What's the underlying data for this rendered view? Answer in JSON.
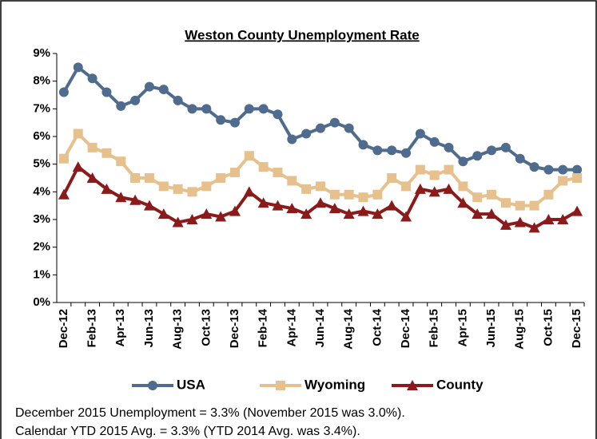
{
  "chart_data": {
    "type": "line",
    "title": "Weston County Unemployment Rate",
    "categories": [
      "Dec-12",
      null,
      "Feb-13",
      null,
      "Apr-13",
      null,
      "Jun-13",
      null,
      "Aug-13",
      null,
      "Oct-13",
      null,
      "Dec-13",
      null,
      "Feb-14",
      null,
      "Apr-14",
      null,
      "Jun-14",
      null,
      "Aug-14",
      null,
      "Oct-14",
      null,
      "Dec-14",
      null,
      "Feb-15",
      null,
      "Apr-15",
      null,
      "Jun-15",
      null,
      "Aug-15",
      null,
      "Oct-15",
      null,
      "Dec-15"
    ],
    "series": [
      {
        "name": "USA",
        "color": "#4f6b8d",
        "marker": "circle",
        "values": [
          7.6,
          8.5,
          8.1,
          7.6,
          7.1,
          7.3,
          7.8,
          7.7,
          7.3,
          7.0,
          7.0,
          6.6,
          6.5,
          7.0,
          7.0,
          6.8,
          5.9,
          6.1,
          6.3,
          6.5,
          6.3,
          5.7,
          5.5,
          5.5,
          5.4,
          6.1,
          5.8,
          5.6,
          5.1,
          5.3,
          5.5,
          5.6,
          5.2,
          4.9,
          4.8,
          4.8,
          4.8
        ]
      },
      {
        "name": "Wyoming",
        "color": "#e6c18d",
        "marker": "square",
        "values": [
          5.2,
          6.1,
          5.6,
          5.4,
          5.1,
          4.5,
          4.5,
          4.2,
          4.1,
          4.0,
          4.2,
          4.5,
          4.7,
          5.3,
          4.9,
          4.7,
          4.4,
          4.1,
          4.2,
          3.9,
          3.9,
          3.8,
          3.9,
          4.5,
          4.2,
          4.8,
          4.6,
          4.8,
          4.2,
          3.8,
          3.9,
          3.6,
          3.5,
          3.5,
          3.9,
          4.4,
          4.5
        ]
      },
      {
        "name": "County",
        "color": "#8b1a1a",
        "marker": "triangle",
        "values": [
          3.9,
          4.9,
          4.5,
          4.1,
          3.8,
          3.7,
          3.5,
          3.2,
          2.9,
          3.0,
          3.2,
          3.1,
          3.3,
          4.0,
          3.6,
          3.5,
          3.4,
          3.2,
          3.6,
          3.4,
          3.2,
          3.3,
          3.2,
          3.5,
          3.1,
          4.1,
          4.0,
          4.1,
          3.6,
          3.2,
          3.2,
          2.8,
          2.9,
          2.7,
          3.0,
          3.0,
          3.3
        ]
      }
    ],
    "ylim": [
      0,
      9
    ],
    "yticks": [
      {
        "value": 0,
        "label": "0%"
      },
      {
        "value": 1,
        "label": "1%"
      },
      {
        "value": 2,
        "label": "2%"
      },
      {
        "value": 3,
        "label": "3%"
      },
      {
        "value": 4,
        "label": "4%"
      },
      {
        "value": 5,
        "label": "5%"
      },
      {
        "value": 6,
        "label": "6%"
      },
      {
        "value": 7,
        "label": "7%"
      },
      {
        "value": 8,
        "label": "8%"
      },
      {
        "value": 9,
        "label": "9%"
      }
    ],
    "grid": false,
    "legend": "bottom",
    "notes": [
      "December 2015 Unemployment = 3.3% (November 2015 was 3.0%).",
      "Calendar YTD 2015 Avg. = 3.3% (YTD 2014 Avg. was 3.4%)."
    ]
  }
}
